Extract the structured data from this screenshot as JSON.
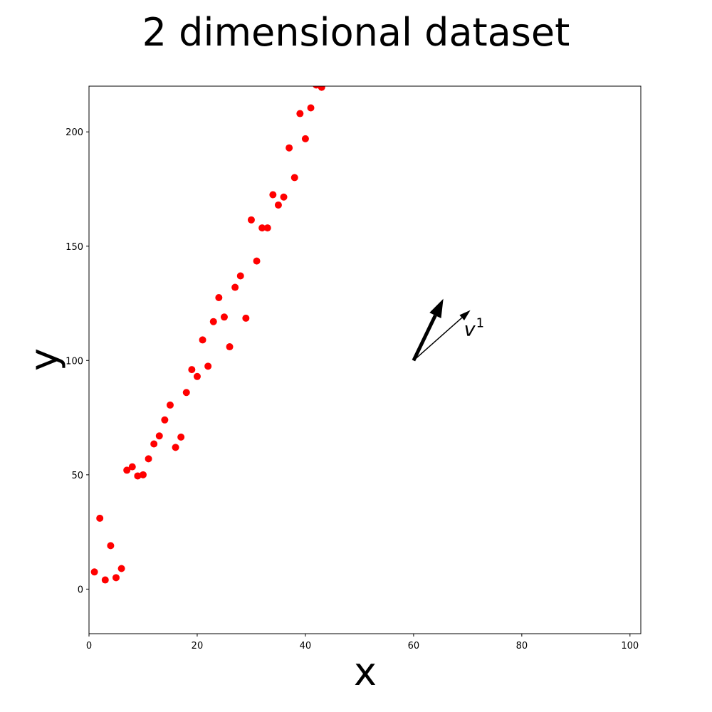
{
  "chart_data": {
    "type": "scatter",
    "title": "2 dimensional dataset",
    "xlabel": "x",
    "ylabel": "y",
    "xlim": [
      0,
      102
    ],
    "ylim": [
      -19.5,
      220
    ],
    "x_ticks": [
      0,
      20,
      40,
      60,
      80,
      100
    ],
    "y_ticks": [
      0,
      50,
      100,
      150,
      200
    ],
    "grid": false,
    "marker_color": "#ff0000",
    "series": [
      {
        "x": [
          1,
          2,
          3,
          4,
          5,
          6,
          7,
          8,
          9,
          10,
          11,
          12,
          13,
          14,
          15,
          16,
          17,
          18,
          19,
          20,
          21,
          22,
          23,
          24,
          25,
          26,
          27,
          28,
          29,
          30,
          31,
          32,
          33,
          34,
          35,
          36,
          37,
          38,
          39,
          40,
          41,
          42,
          43
        ],
        "y": [
          7.5,
          31,
          4,
          19,
          5,
          9,
          52,
          53.5,
          49.5,
          50,
          57,
          63.5,
          67,
          74,
          80.5,
          62,
          66.5,
          86,
          96,
          93,
          109,
          97.5,
          117,
          127.5,
          119,
          106,
          132,
          137,
          118.5,
          161.5,
          143.5,
          158,
          158,
          172.5,
          168,
          171.5,
          193,
          180,
          208,
          197,
          210.5,
          220.5,
          219.5
        ]
      }
    ],
    "annotations": [
      {
        "label": "v",
        "superscript": "1",
        "xy": [
          70.5,
          122
        ],
        "xytext": [
          60,
          100
        ],
        "arrow": "thin"
      },
      {
        "label": "",
        "xy": [
          65.5,
          127
        ],
        "xytext": [
          60,
          100
        ],
        "arrow": "thick"
      }
    ]
  }
}
